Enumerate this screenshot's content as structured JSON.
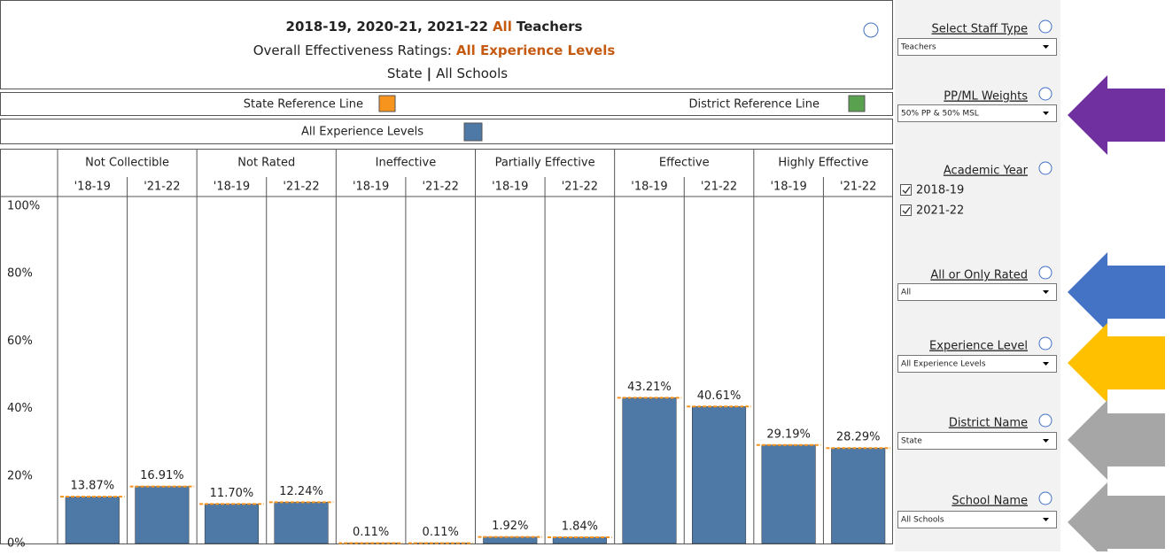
{
  "header": {
    "title": [
      "2018-19, 2020-21, 2021-22",
      "All",
      "Teachers"
    ],
    "subtitle": [
      "Overall Effectiveness Ratings:",
      "All Experience Levels"
    ],
    "scope": [
      "State",
      "|",
      "All Schools"
    ]
  },
  "legend": {
    "state_reference": {
      "label": "State Reference Line",
      "color": "#f7941d"
    },
    "district_reference": {
      "label": "District Reference Line",
      "color": "#59a14f"
    },
    "series_label": "All Experience Levels"
  },
  "chart_data": {
    "type": "bar",
    "categories": [
      "Not Collectible",
      "Not Rated",
      "Ineffective",
      "Partially Effective",
      "Effective",
      "Highly Effective"
    ],
    "series": [
      {
        "name": "'18-19",
        "color": "#4e79a7",
        "values": [
          13.87,
          11.7,
          0.11,
          1.92,
          43.21,
          29.19
        ],
        "value_labels": [
          "13.87%",
          "11.70%",
          "0.11%",
          "1.92%",
          "43.21%",
          "29.19%"
        ]
      },
      {
        "name": "'21-22",
        "color": "#4e79a7",
        "values": [
          16.91,
          12.24,
          0.11,
          1.84,
          40.61,
          28.29
        ],
        "value_labels": [
          "16.91%",
          "12.24%",
          "0.11%",
          "1.84%",
          "40.61%",
          "28.29%"
        ]
      }
    ],
    "ylim": [
      0,
      100
    ],
    "yticks": [
      {
        "value": 0,
        "label": "0%"
      },
      {
        "value": 20,
        "label": "20%"
      },
      {
        "value": 40,
        "label": "40%"
      },
      {
        "value": 60,
        "label": "60%"
      },
      {
        "value": 80,
        "label": "80%"
      },
      {
        "value": 100,
        "label": "100%"
      }
    ]
  },
  "sidebar": {
    "staff_type": {
      "label": "Select Staff Type",
      "value": "Teachers"
    },
    "weights": {
      "label": "PP/ML Weights",
      "value": "50% PP & 50% MSL"
    },
    "academic_year": {
      "label": "Academic Year",
      "options": [
        "2018-19",
        "2021-22"
      ]
    },
    "rated": {
      "label": "All or Only Rated",
      "value": "All"
    },
    "experience": {
      "label": "Experience Level",
      "value": "All Experience Levels"
    },
    "district": {
      "label": "District Name",
      "value": "State"
    },
    "school": {
      "label": "School Name",
      "value": "All Schools"
    }
  }
}
